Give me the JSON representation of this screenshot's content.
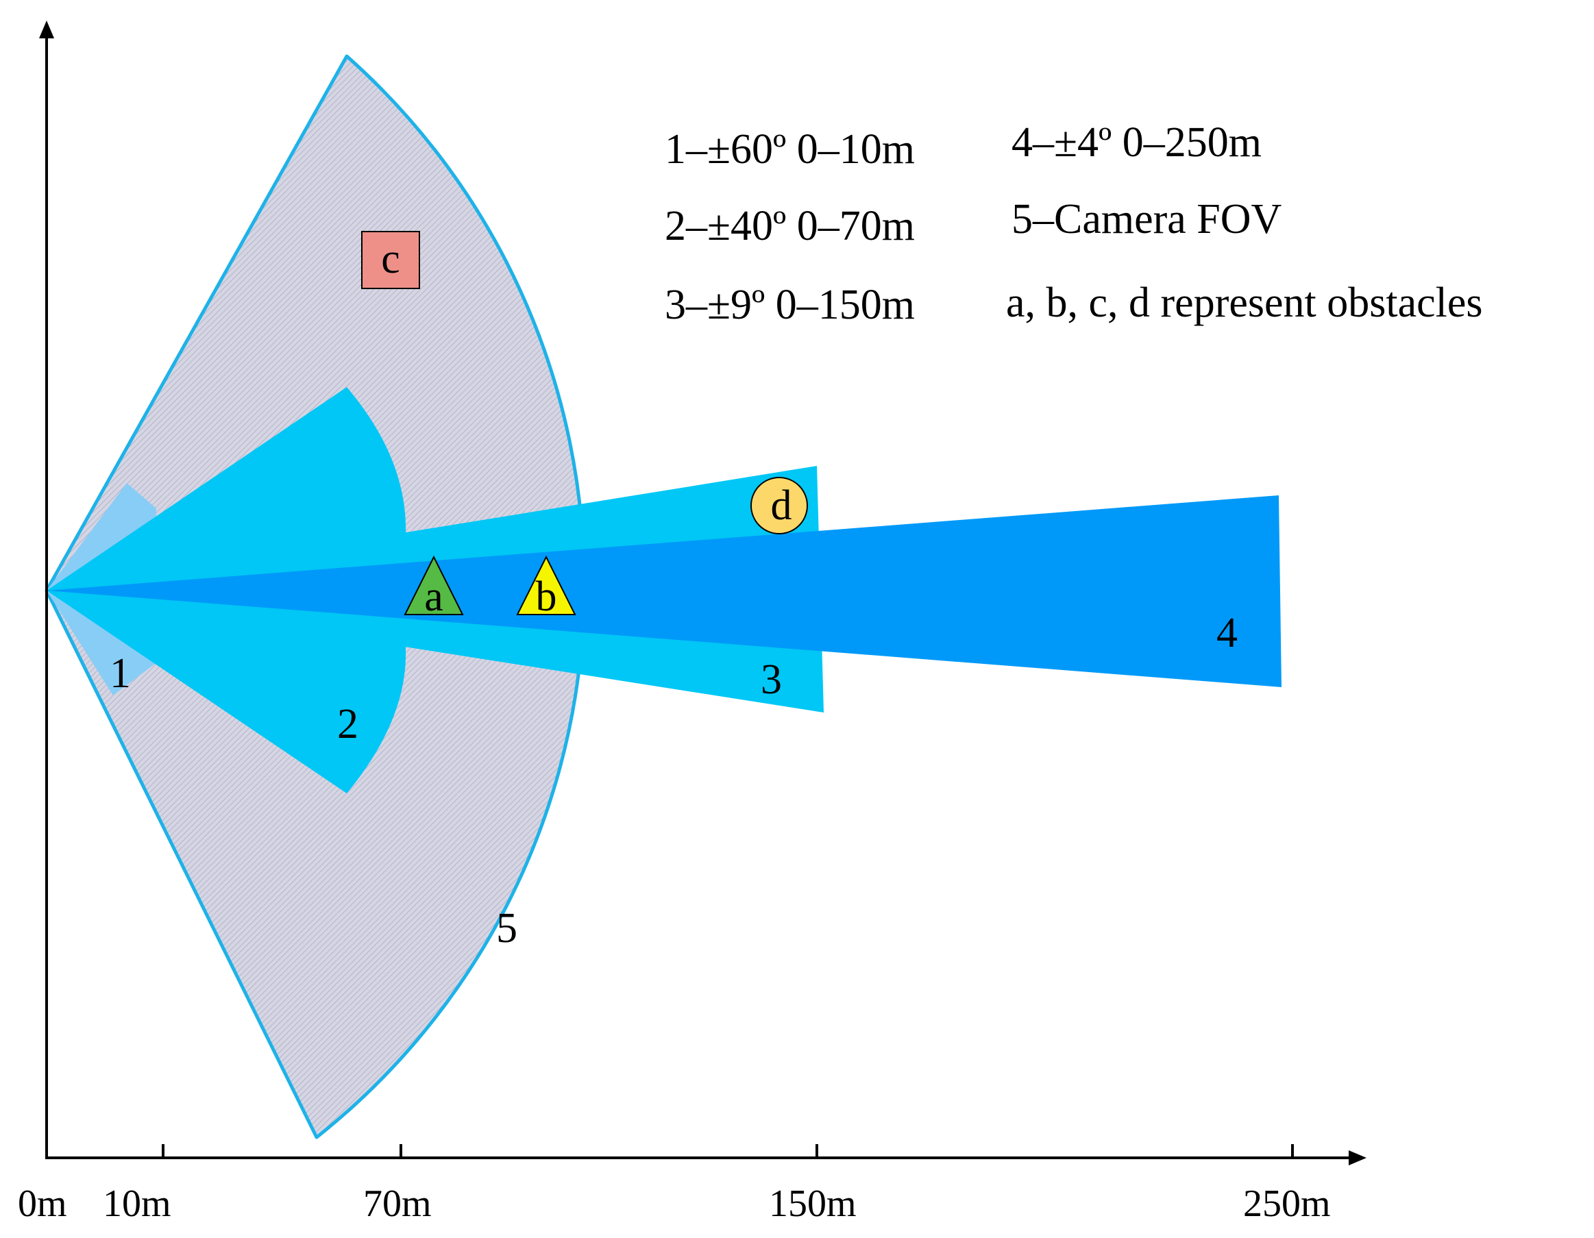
{
  "axis": {
    "tick_labels": [
      "0m",
      "10m",
      "70m",
      "150m",
      "250m"
    ]
  },
  "legend": {
    "items": [
      "1–±60º 0–10m",
      "2–±40º 0–70m",
      "3–±9º 0–150m",
      "4–±4º 0–250m",
      "5–Camera FOV",
      "a, b, c, d represent obstacles"
    ]
  },
  "zones": [
    {
      "label": "1",
      "color": "#88cdf6"
    },
    {
      "label": "2",
      "color": "#00c7f5"
    },
    {
      "label": "3",
      "color": "#00c7f5"
    },
    {
      "label": "4",
      "color": "#0099f9"
    },
    {
      "label": "5",
      "color": "#cfd0e0",
      "edge_color": "#1eb2e8"
    }
  ],
  "obstacles": [
    {
      "label": "a",
      "shape": "triangle",
      "color": "#55bb44"
    },
    {
      "label": "b",
      "shape": "triangle",
      "color": "#f5f500"
    },
    {
      "label": "c",
      "shape": "square",
      "color": "#ee9088"
    },
    {
      "label": "d",
      "shape": "circle",
      "color": "#fcd86a"
    }
  ]
}
